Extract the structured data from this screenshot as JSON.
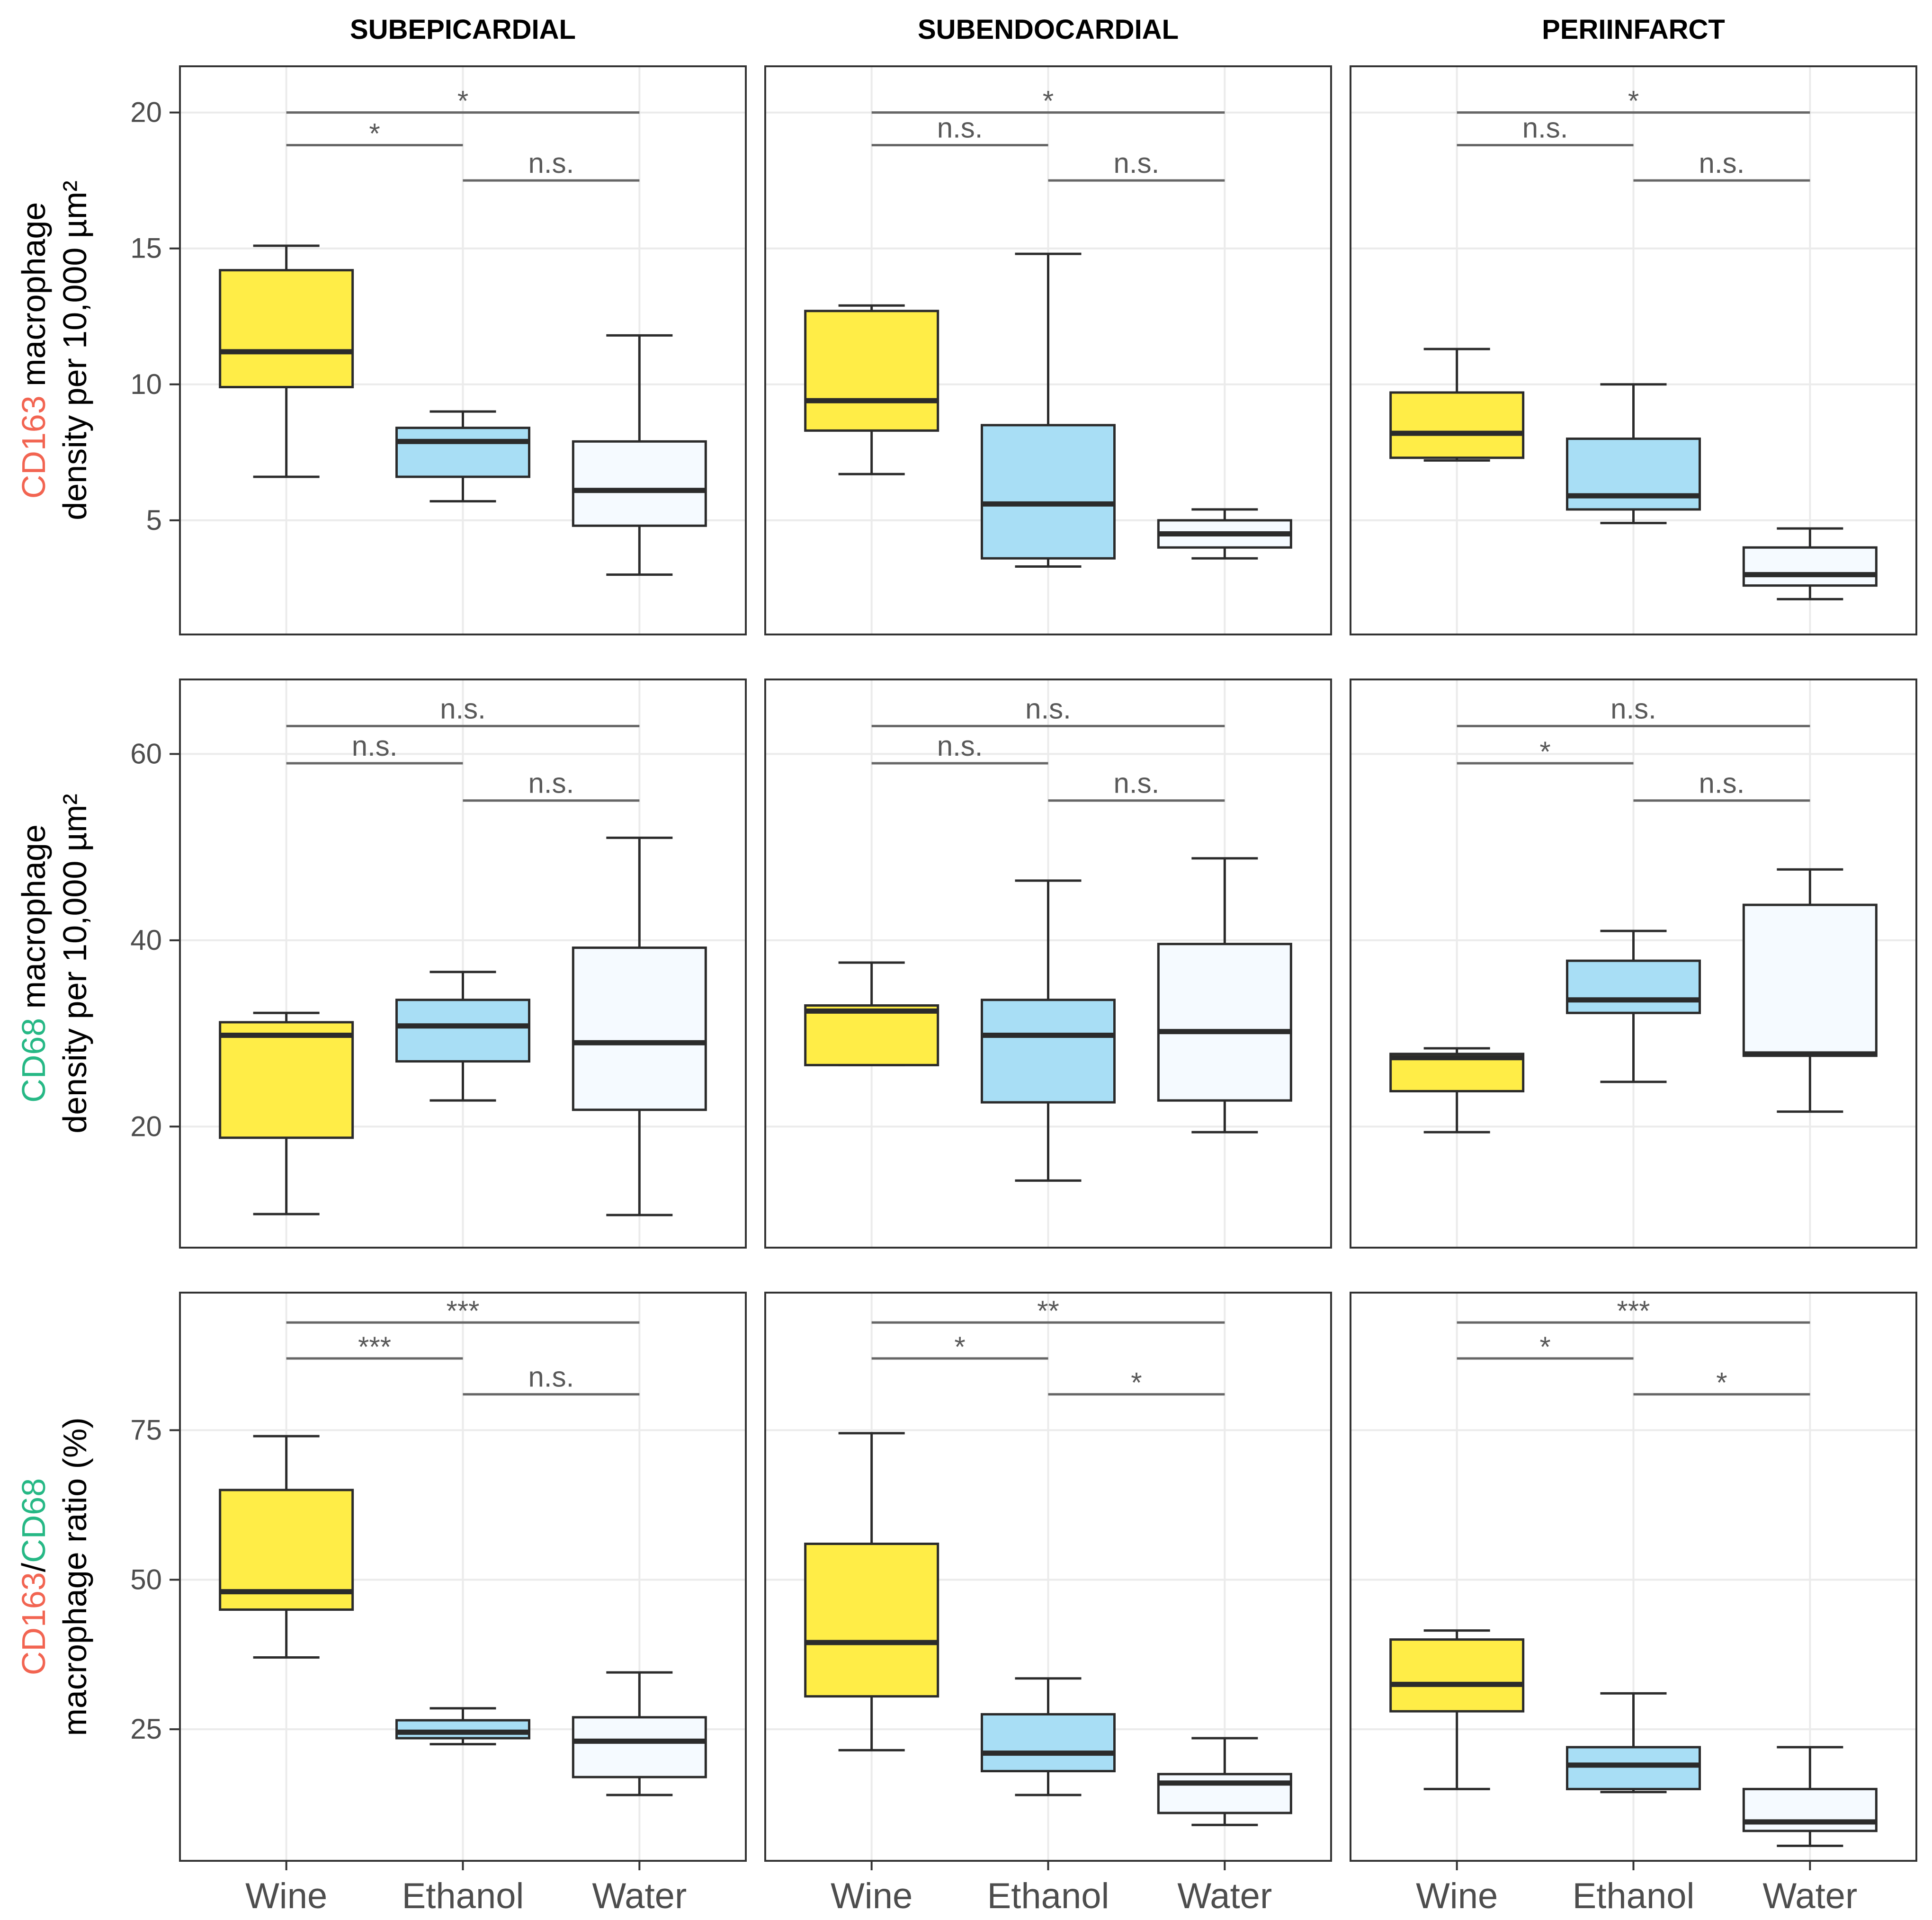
{
  "figure": {
    "facets": [
      "SUBEPICARDIAL",
      "SUBENDOCARDIAL",
      "PERIINFARCT"
    ],
    "categories": [
      "Wine",
      "Ethanol",
      "Water"
    ],
    "colors": {
      "Wine": "#ffed47",
      "Ethanol": "#a8def5",
      "Water": "#f5faff",
      "CD163": "#f26451",
      "CD68": "#26b885",
      "outline": "#2b2b2b",
      "bracket": "#666666",
      "grid": "#ebebeb",
      "panel_border": "#333333"
    }
  },
  "chart_data": [
    {
      "type": "box",
      "ylabel_line1_parts": [
        {
          "text": "CD163",
          "color": "CD163"
        },
        {
          "text": " macrophage",
          "color": "black"
        }
      ],
      "ylabel_line2": "density per 10,000 µm²",
      "ylim": [
        0.8,
        21.7
      ],
      "yticks": [
        5,
        10,
        15,
        20
      ],
      "ytick_labels": [
        "5",
        "10",
        "15",
        "20"
      ],
      "panels": [
        {
          "facet": "SUBEPICARDIAL",
          "boxes": [
            {
              "group": "Wine",
              "min": 6.6,
              "q1": 9.9,
              "median": 11.2,
              "q3": 14.2,
              "max": 15.1
            },
            {
              "group": "Ethanol",
              "min": 5.7,
              "q1": 6.6,
              "median": 7.9,
              "q3": 8.4,
              "max": 9.0
            },
            {
              "group": "Water",
              "min": 3.0,
              "q1": 4.8,
              "median": 6.1,
              "q3": 7.9,
              "max": 11.8
            }
          ],
          "significance": [
            {
              "from": "Wine",
              "to": "Water",
              "y": 20.0,
              "label": "*"
            },
            {
              "from": "Wine",
              "to": "Ethanol",
              "y": 18.8,
              "label": "*"
            },
            {
              "from": "Ethanol",
              "to": "Water",
              "y": 17.5,
              "label": "n.s."
            }
          ]
        },
        {
          "facet": "SUBENDOCARDIAL",
          "boxes": [
            {
              "group": "Wine",
              "min": 6.7,
              "q1": 8.3,
              "median": 9.4,
              "q3": 12.7,
              "max": 12.9
            },
            {
              "group": "Ethanol",
              "min": 3.3,
              "q1": 3.6,
              "median": 5.6,
              "q3": 8.5,
              "max": 14.8
            },
            {
              "group": "Water",
              "min": 3.6,
              "q1": 4.0,
              "median": 4.5,
              "q3": 5.0,
              "max": 5.4
            }
          ],
          "significance": [
            {
              "from": "Wine",
              "to": "Water",
              "y": 20.0,
              "label": "*"
            },
            {
              "from": "Wine",
              "to": "Ethanol",
              "y": 18.8,
              "label": "n.s."
            },
            {
              "from": "Ethanol",
              "to": "Water",
              "y": 17.5,
              "label": "n.s."
            }
          ]
        },
        {
          "facet": "PERIINFARCT",
          "boxes": [
            {
              "group": "Wine",
              "min": 7.2,
              "q1": 7.3,
              "median": 8.2,
              "q3": 9.7,
              "max": 11.3
            },
            {
              "group": "Ethanol",
              "min": 4.9,
              "q1": 5.4,
              "median": 5.9,
              "q3": 8.0,
              "max": 10.0
            },
            {
              "group": "Water",
              "min": 2.1,
              "q1": 2.6,
              "median": 3.0,
              "q3": 4.0,
              "max": 4.7
            }
          ],
          "significance": [
            {
              "from": "Wine",
              "to": "Water",
              "y": 20.0,
              "label": "*"
            },
            {
              "from": "Wine",
              "to": "Ethanol",
              "y": 18.8,
              "label": "n.s."
            },
            {
              "from": "Ethanol",
              "to": "Water",
              "y": 17.5,
              "label": "n.s."
            }
          ]
        }
      ]
    },
    {
      "type": "box",
      "ylabel_line1_parts": [
        {
          "text": "CD68",
          "color": "CD68"
        },
        {
          "text": " macrophage",
          "color": "black"
        }
      ],
      "ylabel_line2": "density per 10,000 µm²",
      "ylim": [
        7.0,
        68.0
      ],
      "yticks": [
        20,
        40,
        60
      ],
      "ytick_labels": [
        "20",
        "40",
        "60"
      ],
      "panels": [
        {
          "facet": "SUBEPICARDIAL",
          "boxes": [
            {
              "group": "Wine",
              "min": 10.6,
              "q1": 18.8,
              "median": 29.8,
              "q3": 31.2,
              "max": 32.2
            },
            {
              "group": "Ethanol",
              "min": 22.8,
              "q1": 27.0,
              "median": 30.8,
              "q3": 33.6,
              "max": 36.6
            },
            {
              "group": "Water",
              "min": 10.5,
              "q1": 21.8,
              "median": 29.0,
              "q3": 39.2,
              "max": 51.0
            }
          ],
          "significance": [
            {
              "from": "Wine",
              "to": "Water",
              "y": 63.0,
              "label": "n.s."
            },
            {
              "from": "Wine",
              "to": "Ethanol",
              "y": 59.0,
              "label": "n.s."
            },
            {
              "from": "Ethanol",
              "to": "Water",
              "y": 55.0,
              "label": "n.s."
            }
          ]
        },
        {
          "facet": "SUBENDOCARDIAL",
          "boxes": [
            {
              "group": "Wine",
              "min": 26.6,
              "q1": 26.6,
              "median": 32.4,
              "q3": 33.0,
              "max": 37.6
            },
            {
              "group": "Ethanol",
              "min": 14.2,
              "q1": 22.6,
              "median": 29.8,
              "q3": 33.6,
              "max": 46.4
            },
            {
              "group": "Water",
              "min": 19.4,
              "q1": 22.8,
              "median": 30.2,
              "q3": 39.6,
              "max": 48.8
            }
          ],
          "significance": [
            {
              "from": "Wine",
              "to": "Water",
              "y": 63.0,
              "label": "n.s."
            },
            {
              "from": "Wine",
              "to": "Ethanol",
              "y": 59.0,
              "label": "n.s."
            },
            {
              "from": "Ethanol",
              "to": "Water",
              "y": 55.0,
              "label": "n.s."
            }
          ]
        },
        {
          "facet": "PERIINFARCT",
          "boxes": [
            {
              "group": "Wine",
              "min": 19.4,
              "q1": 23.8,
              "median": 27.4,
              "q3": 27.8,
              "max": 28.4
            },
            {
              "group": "Ethanol",
              "min": 24.8,
              "q1": 32.2,
              "median": 33.6,
              "q3": 37.8,
              "max": 41.0
            },
            {
              "group": "Water",
              "min": 21.6,
              "q1": 27.6,
              "median": 27.8,
              "q3": 43.8,
              "max": 47.6
            }
          ],
          "significance": [
            {
              "from": "Wine",
              "to": "Water",
              "y": 63.0,
              "label": "n.s."
            },
            {
              "from": "Wine",
              "to": "Ethanol",
              "y": 59.0,
              "label": "*"
            },
            {
              "from": "Ethanol",
              "to": "Water",
              "y": 55.0,
              "label": "n.s."
            }
          ]
        }
      ]
    },
    {
      "type": "box",
      "ylabel_line1_parts": [
        {
          "text": "CD163",
          "color": "CD163"
        },
        {
          "text": "/",
          "color": "black"
        },
        {
          "text": "CD68",
          "color": "CD68"
        }
      ],
      "ylabel_line2": "macrophage ratio (%)",
      "ylim": [
        3.0,
        98.0
      ],
      "yticks": [
        25,
        50,
        75
      ],
      "ytick_labels": [
        "25",
        "50",
        "75"
      ],
      "panels": [
        {
          "facet": "SUBEPICARDIAL",
          "boxes": [
            {
              "group": "Wine",
              "min": 37.0,
              "q1": 45.0,
              "median": 48.0,
              "q3": 65.0,
              "max": 74.0
            },
            {
              "group": "Ethanol",
              "min": 22.5,
              "q1": 23.5,
              "median": 24.5,
              "q3": 26.5,
              "max": 28.5
            },
            {
              "group": "Water",
              "min": 14.0,
              "q1": 17.0,
              "median": 23.0,
              "q3": 27.0,
              "max": 34.5
            }
          ],
          "significance": [
            {
              "from": "Wine",
              "to": "Water",
              "y": 93.0,
              "label": "***"
            },
            {
              "from": "Wine",
              "to": "Ethanol",
              "y": 87.0,
              "label": "***"
            },
            {
              "from": "Ethanol",
              "to": "Water",
              "y": 81.0,
              "label": "n.s."
            }
          ]
        },
        {
          "facet": "SUBENDOCARDIAL",
          "boxes": [
            {
              "group": "Wine",
              "min": 21.5,
              "q1": 30.5,
              "median": 39.5,
              "q3": 56.0,
              "max": 74.5
            },
            {
              "group": "Ethanol",
              "min": 14.0,
              "q1": 18.0,
              "median": 21.0,
              "q3": 27.5,
              "max": 33.5
            },
            {
              "group": "Water",
              "min": 9.0,
              "q1": 11.0,
              "median": 16.0,
              "q3": 17.5,
              "max": 23.5
            }
          ],
          "significance": [
            {
              "from": "Wine",
              "to": "Water",
              "y": 93.0,
              "label": "**"
            },
            {
              "from": "Wine",
              "to": "Ethanol",
              "y": 87.0,
              "label": "*"
            },
            {
              "from": "Ethanol",
              "to": "Water",
              "y": 81.0,
              "label": "*"
            }
          ]
        },
        {
          "facet": "PERIINFARCT",
          "boxes": [
            {
              "group": "Wine",
              "min": 15.0,
              "q1": 28.0,
              "median": 32.5,
              "q3": 40.0,
              "max": 41.5
            },
            {
              "group": "Ethanol",
              "min": 14.5,
              "q1": 15.0,
              "median": 19.0,
              "q3": 22.0,
              "max": 31.0
            },
            {
              "group": "Water",
              "min": 5.5,
              "q1": 8.0,
              "median": 9.5,
              "q3": 15.0,
              "max": 22.0
            }
          ],
          "significance": [
            {
              "from": "Wine",
              "to": "Water",
              "y": 93.0,
              "label": "***"
            },
            {
              "from": "Wine",
              "to": "Ethanol",
              "y": 87.0,
              "label": "*"
            },
            {
              "from": "Ethanol",
              "to": "Water",
              "y": 81.0,
              "label": "*"
            }
          ]
        }
      ]
    }
  ]
}
